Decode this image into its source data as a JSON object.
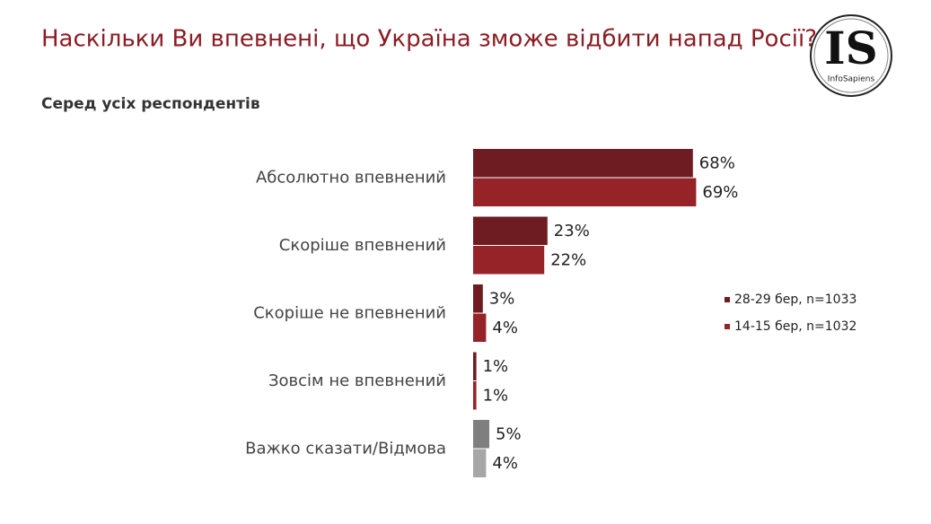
{
  "chart_data": {
    "type": "hbar",
    "title": "Наскільки Ви впевнені, що Україна зможе відбити напад Росії?",
    "subtitle": "Серед усіх респондентів",
    "categories": [
      "Абсолютно впевнений",
      "Скоріше впевнений",
      "Скоріше не впевнений",
      "Зовсім не впевнений",
      "Важко сказати/Відмова"
    ],
    "series": [
      {
        "name": "28-29 бер, n=1033",
        "color": "#6e1c22",
        "colors": [
          "#6e1c22",
          "#6e1c22",
          "#6e1c22",
          "#6e1c22",
          "#7f7f7f"
        ],
        "values": [
          68,
          23,
          3,
          1,
          5
        ],
        "value_labels": [
          "68%",
          "23%",
          "3%",
          "1%",
          "5%"
        ]
      },
      {
        "name": "14-15 бер, n=1032",
        "color": "#962328",
        "colors": [
          "#962328",
          "#962328",
          "#962328",
          "#962328",
          "#a6a6a6"
        ],
        "values": [
          69,
          22,
          4,
          1,
          4
        ],
        "value_labels": [
          "69%",
          "22%",
          "4%",
          "1%",
          "4%"
        ]
      }
    ]
  },
  "logo": {
    "mark": "IS",
    "name": "InfoSapiens"
  }
}
